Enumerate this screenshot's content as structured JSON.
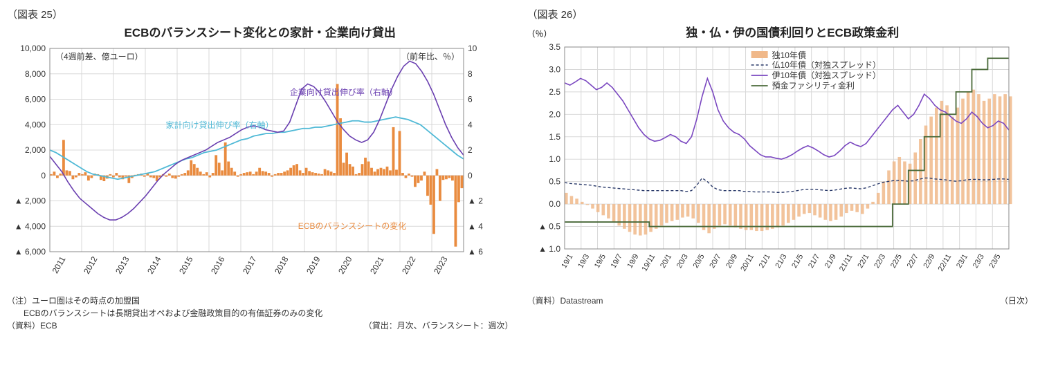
{
  "left": {
    "figLabel": "（図表 25）",
    "title": "ECBのバランスシート変化との家計・企業向け貸出",
    "yLeftLabel": "（4週前差、億ユーロ）",
    "yRightLabel": "（前年比、％）",
    "yLeft": {
      "min": -6000,
      "max": 10000,
      "ticks": [
        -6000,
        -4000,
        -2000,
        0,
        2000,
        4000,
        6000,
        8000,
        10000
      ]
    },
    "yRight": {
      "min": -6,
      "max": 10,
      "ticks": [
        -6,
        -4,
        -2,
        0,
        2,
        4,
        6,
        8,
        10
      ]
    },
    "xLabels": [
      "2011",
      "2012",
      "2013",
      "2014",
      "2015",
      "2016",
      "2017",
      "2018",
      "2019",
      "2020",
      "2021",
      "2022",
      "2023"
    ],
    "colors": {
      "bars": "#e98b3f",
      "lineHouse": "#4fb9d6",
      "lineCorp": "#6a3fb0",
      "grid": "#d8d8d8",
      "text": "#333333",
      "bg": "#ffffff"
    },
    "bars": [
      100,
      300,
      -200,
      150,
      2800,
      400,
      350,
      -300,
      -150,
      200,
      100,
      250,
      -400,
      -200,
      150,
      100,
      -350,
      -450,
      -250,
      100,
      -150,
      200,
      -150,
      -300,
      -100,
      -600,
      -200,
      50,
      100,
      150,
      -100,
      200,
      -150,
      -200,
      -450,
      -150,
      100,
      -100,
      150,
      -200,
      -250,
      -100,
      100,
      200,
      400,
      1200,
      900,
      600,
      300,
      100,
      250,
      -150,
      200,
      1600,
      1000,
      400,
      2600,
      1100,
      600,
      300,
      -100,
      100,
      200,
      250,
      300,
      100,
      300,
      600,
      350,
      300,
      200,
      -100,
      100,
      200,
      200,
      300,
      400,
      600,
      800,
      900,
      400,
      200,
      600,
      350,
      250,
      200,
      150,
      100,
      500,
      400,
      300,
      200,
      7200,
      4500,
      1000,
      1800,
      900,
      700,
      100,
      200,
      900,
      1400,
      1100,
      600,
      300,
      500,
      600,
      500,
      700,
      400,
      3800,
      450,
      3500,
      200,
      -200,
      150,
      -100,
      -900,
      -600,
      -400,
      300,
      -1600,
      -2300,
      -4600,
      500,
      -2000,
      -350,
      -300,
      -200,
      -400,
      -5600,
      -2100,
      -1000
    ],
    "household": [
      2.0,
      1.8,
      1.5,
      1.2,
      0.9,
      0.6,
      0.3,
      0.1,
      0.0,
      -0.1,
      -0.2,
      -0.3,
      -0.2,
      -0.1,
      0.0,
      0.1,
      0.2,
      0.3,
      0.5,
      0.7,
      0.9,
      1.1,
      1.3,
      1.4,
      1.6,
      1.8,
      1.9,
      2.0,
      2.2,
      2.4,
      2.6,
      2.8,
      2.9,
      3.1,
      3.2,
      3.3,
      3.3,
      3.4,
      3.4,
      3.5,
      3.6,
      3.7,
      3.7,
      3.8,
      3.8,
      3.9,
      4.0,
      4.1,
      4.2,
      4.3,
      4.3,
      4.2,
      4.2,
      4.3,
      4.4,
      4.5,
      4.6,
      4.5,
      4.4,
      4.2,
      4.0,
      3.6,
      3.2,
      2.8,
      2.4,
      2.0,
      1.6,
      1.3
    ],
    "corporate": [
      1.5,
      0.9,
      0.3,
      -0.5,
      -1.2,
      -1.8,
      -2.2,
      -2.6,
      -3.0,
      -3.3,
      -3.5,
      -3.5,
      -3.3,
      -3.0,
      -2.6,
      -2.1,
      -1.6,
      -1.0,
      -0.4,
      0.1,
      0.5,
      0.9,
      1.2,
      1.4,
      1.6,
      1.8,
      2.0,
      2.3,
      2.6,
      2.8,
      3.0,
      3.3,
      3.6,
      3.8,
      3.9,
      3.8,
      3.6,
      3.5,
      3.4,
      3.5,
      4.2,
      5.5,
      6.8,
      7.2,
      7.0,
      6.5,
      5.8,
      5.0,
      4.2,
      3.6,
      3.1,
      2.8,
      2.6,
      2.8,
      3.4,
      4.4,
      5.6,
      6.8,
      7.8,
      8.6,
      9.0,
      8.8,
      8.2,
      7.4,
      6.4,
      5.2,
      4.0,
      3.0,
      2.2,
      1.6
    ],
    "labelECB": "ECBのバランスシートの変化",
    "labelHouse": "家計向け貸出伸び率（右軸）",
    "labelCorp": "企業向け貸出伸び率（右軸）",
    "note1": "（注）ユーロ圏はその時点の加盟国",
    "note2": "　　ECBのバランスシートは長期貸出オペおよび金融政策目的の有価証券のみの変化",
    "note3": "（資料）ECB",
    "note4": "（貸出：月次、バランスシート：週次）"
  },
  "right": {
    "figLabel": "（図表 26）",
    "title": "独・仏・伊の国債利回りとECB政策金利",
    "yLabel": "（％）",
    "y": {
      "min": -1.0,
      "max": 3.5,
      "ticks": [
        -1.0,
        -0.5,
        0.0,
        0.5,
        1.0,
        1.5,
        2.0,
        2.5,
        3.0,
        3.5
      ]
    },
    "xLabels": [
      "19/1",
      "19/3",
      "19/5",
      "19/7",
      "19/9",
      "19/11",
      "20/1",
      "20/3",
      "20/5",
      "20/7",
      "20/9",
      "20/11",
      "21/1",
      "21/3",
      "21/5",
      "21/7",
      "21/9",
      "21/11",
      "22/1",
      "22/3",
      "22/5",
      "22/7",
      "22/9",
      "22/11",
      "23/1",
      "23/3",
      "23/5"
    ],
    "colors": {
      "area": "#f0b889",
      "france": "#2a3a6a",
      "italy": "#7a47c0",
      "policy": "#4a6a3a",
      "grid": "#d8d8d8",
      "bg": "#ffffff"
    },
    "germany": [
      0.25,
      0.18,
      0.12,
      0.05,
      -0.02,
      -0.1,
      -0.18,
      -0.25,
      -0.32,
      -0.4,
      -0.48,
      -0.55,
      -0.62,
      -0.68,
      -0.7,
      -0.68,
      -0.62,
      -0.55,
      -0.48,
      -0.42,
      -0.38,
      -0.35,
      -0.3,
      -0.28,
      -0.32,
      -0.42,
      -0.58,
      -0.65,
      -0.55,
      -0.48,
      -0.45,
      -0.48,
      -0.52,
      -0.55,
      -0.58,
      -0.58,
      -0.6,
      -0.6,
      -0.58,
      -0.55,
      -0.52,
      -0.48,
      -0.42,
      -0.35,
      -0.28,
      -0.22,
      -0.2,
      -0.25,
      -0.3,
      -0.35,
      -0.38,
      -0.35,
      -0.28,
      -0.2,
      -0.15,
      -0.18,
      -0.22,
      -0.1,
      0.05,
      0.25,
      0.5,
      0.75,
      0.95,
      1.05,
      0.95,
      0.9,
      1.15,
      1.45,
      1.75,
      1.95,
      2.15,
      2.3,
      2.2,
      1.95,
      2.15,
      2.35,
      2.5,
      2.55,
      2.45,
      2.3,
      2.35,
      2.45,
      2.4,
      2.45,
      2.4
    ],
    "france": [
      0.48,
      0.46,
      0.45,
      0.44,
      0.43,
      0.42,
      0.4,
      0.38,
      0.37,
      0.36,
      0.35,
      0.34,
      0.33,
      0.32,
      0.31,
      0.3,
      0.3,
      0.3,
      0.3,
      0.3,
      0.3,
      0.3,
      0.3,
      0.28,
      0.3,
      0.42,
      0.58,
      0.5,
      0.38,
      0.32,
      0.3,
      0.3,
      0.3,
      0.3,
      0.28,
      0.28,
      0.27,
      0.27,
      0.27,
      0.27,
      0.26,
      0.26,
      0.27,
      0.28,
      0.3,
      0.32,
      0.33,
      0.33,
      0.32,
      0.31,
      0.3,
      0.31,
      0.33,
      0.35,
      0.36,
      0.35,
      0.34,
      0.36,
      0.4,
      0.44,
      0.48,
      0.5,
      0.52,
      0.53,
      0.52,
      0.51,
      0.52,
      0.55,
      0.58,
      0.58,
      0.56,
      0.55,
      0.54,
      0.52,
      0.51,
      0.52,
      0.54,
      0.55,
      0.55,
      0.54,
      0.54,
      0.55,
      0.56,
      0.56,
      0.55
    ],
    "italy": [
      2.7,
      2.65,
      2.72,
      2.8,
      2.75,
      2.65,
      2.55,
      2.6,
      2.7,
      2.6,
      2.45,
      2.3,
      2.1,
      1.9,
      1.7,
      1.55,
      1.45,
      1.4,
      1.42,
      1.48,
      1.55,
      1.5,
      1.4,
      1.35,
      1.5,
      1.9,
      2.4,
      2.8,
      2.5,
      2.1,
      1.85,
      1.7,
      1.6,
      1.55,
      1.45,
      1.3,
      1.2,
      1.1,
      1.05,
      1.05,
      1.02,
      1.0,
      1.04,
      1.1,
      1.18,
      1.25,
      1.3,
      1.25,
      1.18,
      1.1,
      1.05,
      1.08,
      1.18,
      1.3,
      1.38,
      1.32,
      1.28,
      1.35,
      1.5,
      1.65,
      1.8,
      1.95,
      2.1,
      2.2,
      2.05,
      1.9,
      2.0,
      2.2,
      2.45,
      2.35,
      2.2,
      2.1,
      2.05,
      1.95,
      1.85,
      1.8,
      1.9,
      2.05,
      1.95,
      1.8,
      1.7,
      1.75,
      1.85,
      1.8,
      1.65
    ],
    "policy": [
      [
        -0.4,
        0
      ],
      [
        -0.4,
        16
      ],
      [
        -0.5,
        16
      ],
      [
        -0.5,
        62
      ],
      [
        0.0,
        62
      ],
      [
        0.0,
        65
      ],
      [
        0.75,
        65
      ],
      [
        0.75,
        68
      ],
      [
        1.5,
        68
      ],
      [
        1.5,
        71
      ],
      [
        2.0,
        71
      ],
      [
        2.0,
        74
      ],
      [
        2.5,
        74
      ],
      [
        2.5,
        77
      ],
      [
        3.0,
        77
      ],
      [
        3.0,
        80
      ],
      [
        3.25,
        80
      ],
      [
        3.25,
        84
      ]
    ],
    "legend": {
      "de": "独10年債",
      "fr": "仏10年債（対独スプレッド）",
      "it": "伊10年債（対独スプレッド）",
      "policy": "預金ファシリティ金利"
    },
    "note1": "（資料）Datastream",
    "note2": "（日次）"
  }
}
